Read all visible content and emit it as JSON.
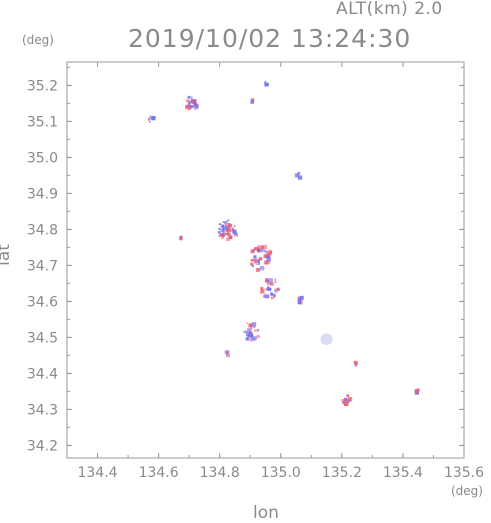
{
  "header": {
    "alt_label": "ALT(km)  2.0",
    "timestamp": "2019/10/02 13:24:30"
  },
  "axes": {
    "lat_unit": "(deg)",
    "lon_unit": "(deg)",
    "lat_title": "lat",
    "lon_title": "lon",
    "lat_ticks": [
      "35.2",
      "35.1",
      "35.0",
      "34.9",
      "34.8",
      "34.7",
      "34.6",
      "34.5",
      "34.4",
      "34.3",
      "34.2"
    ],
    "lon_ticks": [
      "134.4",
      "134.6",
      "134.8",
      "135.0",
      "135.2",
      "135.4",
      "135.6"
    ],
    "lat_range": [
      34.165,
      35.265
    ],
    "lon_range": [
      134.3,
      135.6
    ]
  },
  "colors": {
    "frame": "#9a9a9a",
    "text": "#8a8a8a",
    "echo_blue": "#7070f0",
    "echo_red": "#f06070",
    "echo_light": "#d8dcf4"
  },
  "map_data": {
    "echo_clusters": [
      {
        "lon": 134.7,
        "lat": 35.155,
        "r": 0.02,
        "n": 22
      },
      {
        "lon": 134.57,
        "lat": 35.11,
        "r": 0.01,
        "n": 6
      },
      {
        "lon": 134.9,
        "lat": 35.162,
        "r": 0.004,
        "n": 2
      },
      {
        "lon": 134.95,
        "lat": 35.21,
        "r": 0.006,
        "n": 3
      },
      {
        "lon": 135.05,
        "lat": 34.955,
        "r": 0.008,
        "n": 4
      },
      {
        "lon": 134.82,
        "lat": 34.8,
        "r": 0.03,
        "n": 45
      },
      {
        "lon": 134.93,
        "lat": 34.725,
        "r": 0.035,
        "n": 45
      },
      {
        "lon": 134.96,
        "lat": 34.64,
        "r": 0.03,
        "n": 30
      },
      {
        "lon": 135.06,
        "lat": 34.61,
        "r": 0.01,
        "n": 6
      },
      {
        "lon": 134.9,
        "lat": 34.52,
        "r": 0.025,
        "n": 25
      },
      {
        "lon": 134.82,
        "lat": 34.46,
        "r": 0.006,
        "n": 4
      },
      {
        "lon": 134.67,
        "lat": 34.78,
        "r": 0.006,
        "n": 4
      },
      {
        "lon": 135.21,
        "lat": 34.33,
        "r": 0.015,
        "n": 10
      },
      {
        "lon": 135.24,
        "lat": 34.43,
        "r": 0.005,
        "n": 3
      },
      {
        "lon": 135.44,
        "lat": 34.355,
        "r": 0.006,
        "n": 4
      }
    ],
    "light_patches": [
      {
        "lon": 135.15,
        "lat": 34.495,
        "r": 0.02
      }
    ]
  }
}
